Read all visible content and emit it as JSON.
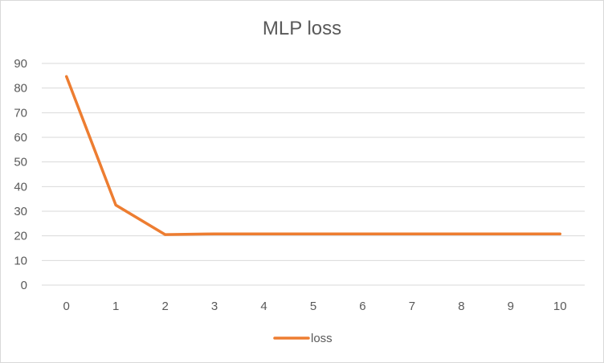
{
  "chart_data": {
    "type": "line",
    "title": "MLP loss",
    "xlabel": "",
    "ylabel": "",
    "x": [
      0,
      1,
      2,
      3,
      4,
      5,
      6,
      7,
      8,
      9,
      10
    ],
    "ylim": [
      0,
      90
    ],
    "yticks": [
      0,
      10,
      20,
      30,
      40,
      50,
      60,
      70,
      80,
      90
    ],
    "grid": true,
    "legend": "bottom",
    "series": [
      {
        "name": "loss",
        "color": "#ED7D31",
        "values": [
          84.7,
          32.5,
          20.5,
          20.8,
          20.8,
          20.8,
          20.8,
          20.8,
          20.8,
          20.8,
          20.8
        ]
      }
    ]
  }
}
